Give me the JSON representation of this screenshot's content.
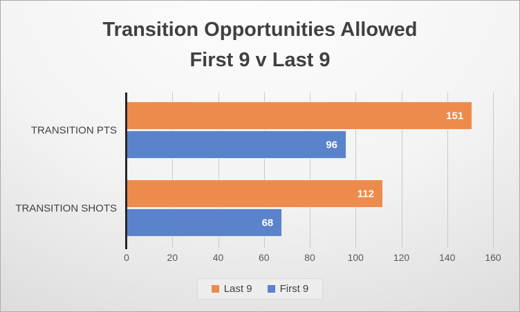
{
  "chart_data": {
    "type": "bar",
    "orientation": "horizontal",
    "title": "Transition Opportunities Allowed First 9 v Last 9",
    "title_lines": [
      "Transition Opportunities Allowed",
      "First 9 v Last 9"
    ],
    "categories": [
      "TRANSITION PTS",
      "TRANSITION SHOTS"
    ],
    "series": [
      {
        "name": "Last 9",
        "color": "#ED8B4D",
        "values": [
          151,
          112
        ]
      },
      {
        "name": "First 9",
        "color": "#5B83CB",
        "values": [
          96,
          68
        ]
      }
    ],
    "xlim": [
      0,
      160
    ],
    "x_ticks": [
      0,
      20,
      40,
      60,
      80,
      100,
      120,
      140,
      160
    ],
    "grid": true,
    "data_labels": true,
    "legend_position": "bottom",
    "colors": {
      "axis_line": "#262626",
      "gridline": "#c9c9c9",
      "title_text": "#404040",
      "tick_text": "#595959",
      "data_label_text": "#ffffff"
    }
  }
}
